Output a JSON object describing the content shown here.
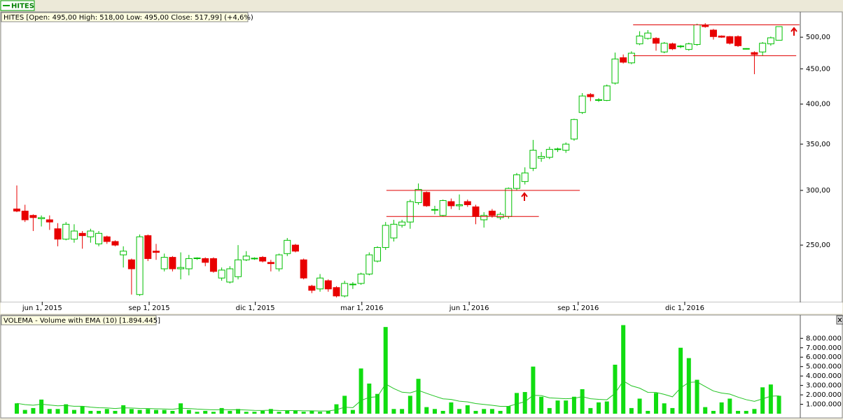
{
  "tab": "HITES",
  "chart_data": [
    {
      "type": "candlestick",
      "title": "HITES [Open: 495,00  High: 518,00  Low: 495,00  Close: 517,99] (+4,6%)",
      "up_color": "#00c000",
      "down_color": "#e80000",
      "log_scale": true,
      "open": [
        282,
        280,
        276,
        273,
        272,
        264,
        255,
        255,
        260,
        257,
        251,
        257,
        253,
        242,
        238,
        212,
        258,
        245,
        231,
        240,
        231,
        231,
        239,
        239,
        239,
        224,
        221,
        225,
        238,
        239,
        240,
        236,
        231,
        243,
        250,
        238,
        218,
        216,
        222,
        217,
        211,
        219,
        220,
        227,
        237,
        248,
        256,
        267,
        270,
        288,
        298,
        281,
        276,
        289,
        285,
        289,
        284,
        272,
        280,
        274,
        275,
        302,
        309,
        323,
        334,
        335,
        344,
        343,
        356,
        389,
        413,
        405,
        405,
        429,
        467,
        459,
        489,
        498,
        498,
        476,
        489,
        485,
        480,
        488,
        521,
        512,
        502,
        501,
        501,
        481,
        475,
        476,
        489,
        495
      ],
      "high": [
        305,
        286,
        277,
        276,
        276,
        269,
        270,
        268,
        262,
        264,
        262,
        258,
        254,
        249,
        239,
        259,
        259,
        251,
        243,
        241,
        244,
        242,
        240,
        240,
        240,
        232,
        233,
        250,
        245,
        240,
        241,
        238,
        243,
        256,
        251,
        239,
        219,
        227,
        223,
        218,
        222,
        221,
        228,
        244,
        249,
        270,
        272,
        272,
        291,
        307,
        299,
        285,
        291,
        292,
        296,
        291,
        286,
        279,
        282,
        279,
        303,
        318,
        324,
        355,
        341,
        347,
        346,
        352,
        381,
        415,
        415,
        408,
        427,
        475,
        472,
        477,
        510,
        512,
        500,
        492,
        491,
        487,
        491,
        523,
        524,
        514,
        503,
        502,
        503,
        482,
        477,
        492,
        501,
        518
      ],
      "low": [
        279,
        270,
        262,
        266,
        263,
        249,
        254,
        252,
        247,
        252,
        249,
        251,
        249,
        232,
        212,
        211,
        237,
        238,
        229,
        229,
        223,
        226,
        238,
        233,
        228,
        222,
        220,
        223,
        237,
        238,
        236,
        229,
        229,
        241,
        244,
        223,
        213,
        214,
        214,
        210,
        210,
        216,
        219,
        226,
        236,
        246,
        253,
        265,
        264,
        286,
        284,
        277,
        275,
        282,
        281,
        284,
        268,
        265,
        274,
        272,
        273,
        300,
        306,
        320,
        330,
        333,
        341,
        340,
        354,
        387,
        404,
        403,
        404,
        427,
        458,
        457,
        487,
        496,
        478,
        474,
        479,
        482,
        478,
        486,
        516,
        496,
        499,
        488,
        484,
        480,
        442,
        470,
        486,
        495
      ],
      "close": [
        280,
        272,
        274,
        274,
        270,
        255,
        268,
        262,
        258,
        262,
        260,
        253,
        250,
        245,
        231,
        257,
        239,
        244,
        240,
        231,
        232,
        239,
        239.5,
        236,
        229,
        230,
        231,
        238,
        241,
        239.3,
        237,
        235,
        242,
        254,
        245,
        224,
        215,
        224,
        216,
        211,
        220,
        219.5,
        227,
        242,
        248,
        267,
        268,
        270,
        289,
        301,
        285,
        281.5,
        290,
        285,
        286,
        286,
        275,
        276,
        276,
        277,
        302,
        316,
        318,
        343,
        336,
        344,
        344.5,
        350,
        380,
        411,
        410,
        406,
        425,
        465,
        460,
        474,
        502,
        507,
        490,
        490,
        481,
        485.5,
        489,
        521,
        518,
        501,
        500,
        490,
        486,
        481.5,
        472,
        490,
        499,
        517.99
      ],
      "levels": [
        {
          "value": 300,
          "x": [
            45.1,
            68.7
          ]
        },
        {
          "value": 275,
          "x": [
            45.1,
            63.7
          ]
        },
        {
          "value": 521,
          "x": [
            75.2,
            95.5
          ]
        },
        {
          "value": 470,
          "x": [
            75.2,
            95.1
          ]
        }
      ],
      "level_color": "#e00000",
      "xlim": [
        -1.88,
        95.6
      ],
      "xticks": [
        {
          "value": 3.1,
          "label": "jun 1, 2015"
        },
        {
          "value": 16.15,
          "label": "sep 1, 2015"
        },
        {
          "value": 29.1,
          "label": "dic 1, 2015"
        },
        {
          "value": 42.1,
          "label": "mar 1, 2016"
        },
        {
          "value": 55.2,
          "label": "jun 1, 2016"
        },
        {
          "value": 68.5,
          "label": "sep 1, 2016"
        },
        {
          "value": 81.5,
          "label": "dic 1, 2016"
        }
      ],
      "ylim": [
        207,
        544
      ],
      "yticks": [
        {
          "value": 250,
          "label": "250,00"
        },
        {
          "value": 300,
          "label": "300,00"
        },
        {
          "value": 350,
          "label": "350,00"
        },
        {
          "value": 400,
          "label": "400,00"
        },
        {
          "value": 450,
          "label": "450,00"
        },
        {
          "value": 500,
          "label": "500,00"
        }
      ]
    },
    {
      "type": "bar",
      "title": "VOLEMA - Volume with EMA (10) [1.894.445]",
      "series": [
        {
          "name": "Volume",
          "color": "#11dd11",
          "values": [
            1100000,
            400000,
            600000,
            1500000,
            500000,
            500000,
            1000000,
            400000,
            800000,
            300000,
            300000,
            500000,
            300000,
            900000,
            500000,
            400000,
            500000,
            400000,
            400000,
            300000,
            1100000,
            400000,
            200000,
            300000,
            200000,
            600000,
            300000,
            500000,
            200000,
            200000,
            300000,
            500000,
            200000,
            300000,
            300000,
            200000,
            300000,
            200000,
            300000,
            1000000,
            1900000,
            400000,
            4800000,
            3200000,
            2100000,
            9200000,
            500000,
            500000,
            1900000,
            3700000,
            700000,
            500000,
            300000,
            1200000,
            500000,
            900000,
            300000,
            500000,
            500000,
            300000,
            800000,
            2200000,
            2300000,
            5000000,
            1800000,
            600000,
            1400000,
            1400000,
            1800000,
            2600000,
            600000,
            1200000,
            1300000,
            5200000,
            9400000,
            600000,
            1600000,
            300000,
            2200000,
            1100000,
            600000,
            7000000,
            5900000,
            3600000,
            700000,
            300000,
            1200000,
            1600000,
            300000,
            300000,
            500000,
            2800000,
            3100000,
            1900000
          ]
        },
        {
          "name": "EMA (10)",
          "color": "#22c422",
          "values": [
            1100000,
            970000,
            900000,
            1010000,
            920000,
            840000,
            870000,
            790000,
            790000,
            700000,
            630000,
            610000,
            550000,
            620000,
            600000,
            560000,
            550000,
            520000,
            500000,
            460000,
            580000,
            550000,
            490000,
            450000,
            410000,
            440000,
            420000,
            430000,
            390000,
            350000,
            340000,
            370000,
            340000,
            330000,
            330000,
            310000,
            310000,
            290000,
            290000,
            420000,
            690000,
            640000,
            1400000,
            1730000,
            1800000,
            3150000,
            2670000,
            2280000,
            2210000,
            2480000,
            2160000,
            1860000,
            1580000,
            1510000,
            1330000,
            1250000,
            1080000,
            980000,
            890000,
            780000,
            780000,
            1040000,
            1270000,
            1950000,
            1920000,
            1680000,
            1630000,
            1590000,
            1630000,
            1810000,
            1590000,
            1520000,
            1480000,
            2160000,
            3480000,
            2960000,
            2710000,
            2270000,
            2260000,
            2050000,
            1790000,
            2740000,
            3320000,
            3370000,
            2880000,
            2410000,
            2190000,
            2080000,
            1760000,
            1490000,
            1310000,
            1580000,
            1860000,
            1894445
          ]
        }
      ],
      "xlim": [
        -1.88,
        95.6
      ],
      "ylim": [
        0,
        10400000
      ],
      "yticks": [
        {
          "value": 1000000,
          "label": "1.000.000"
        },
        {
          "value": 2000000,
          "label": "2.000.000"
        },
        {
          "value": 3000000,
          "label": "3.000.000"
        },
        {
          "value": 4000000,
          "label": "4.000.000"
        },
        {
          "value": 5000000,
          "label": "5.000.000"
        },
        {
          "value": 6000000,
          "label": "6.000.000"
        },
        {
          "value": 7000000,
          "label": "7.000.000"
        },
        {
          "value": 8000000,
          "label": "8.000.000"
        }
      ]
    }
  ]
}
